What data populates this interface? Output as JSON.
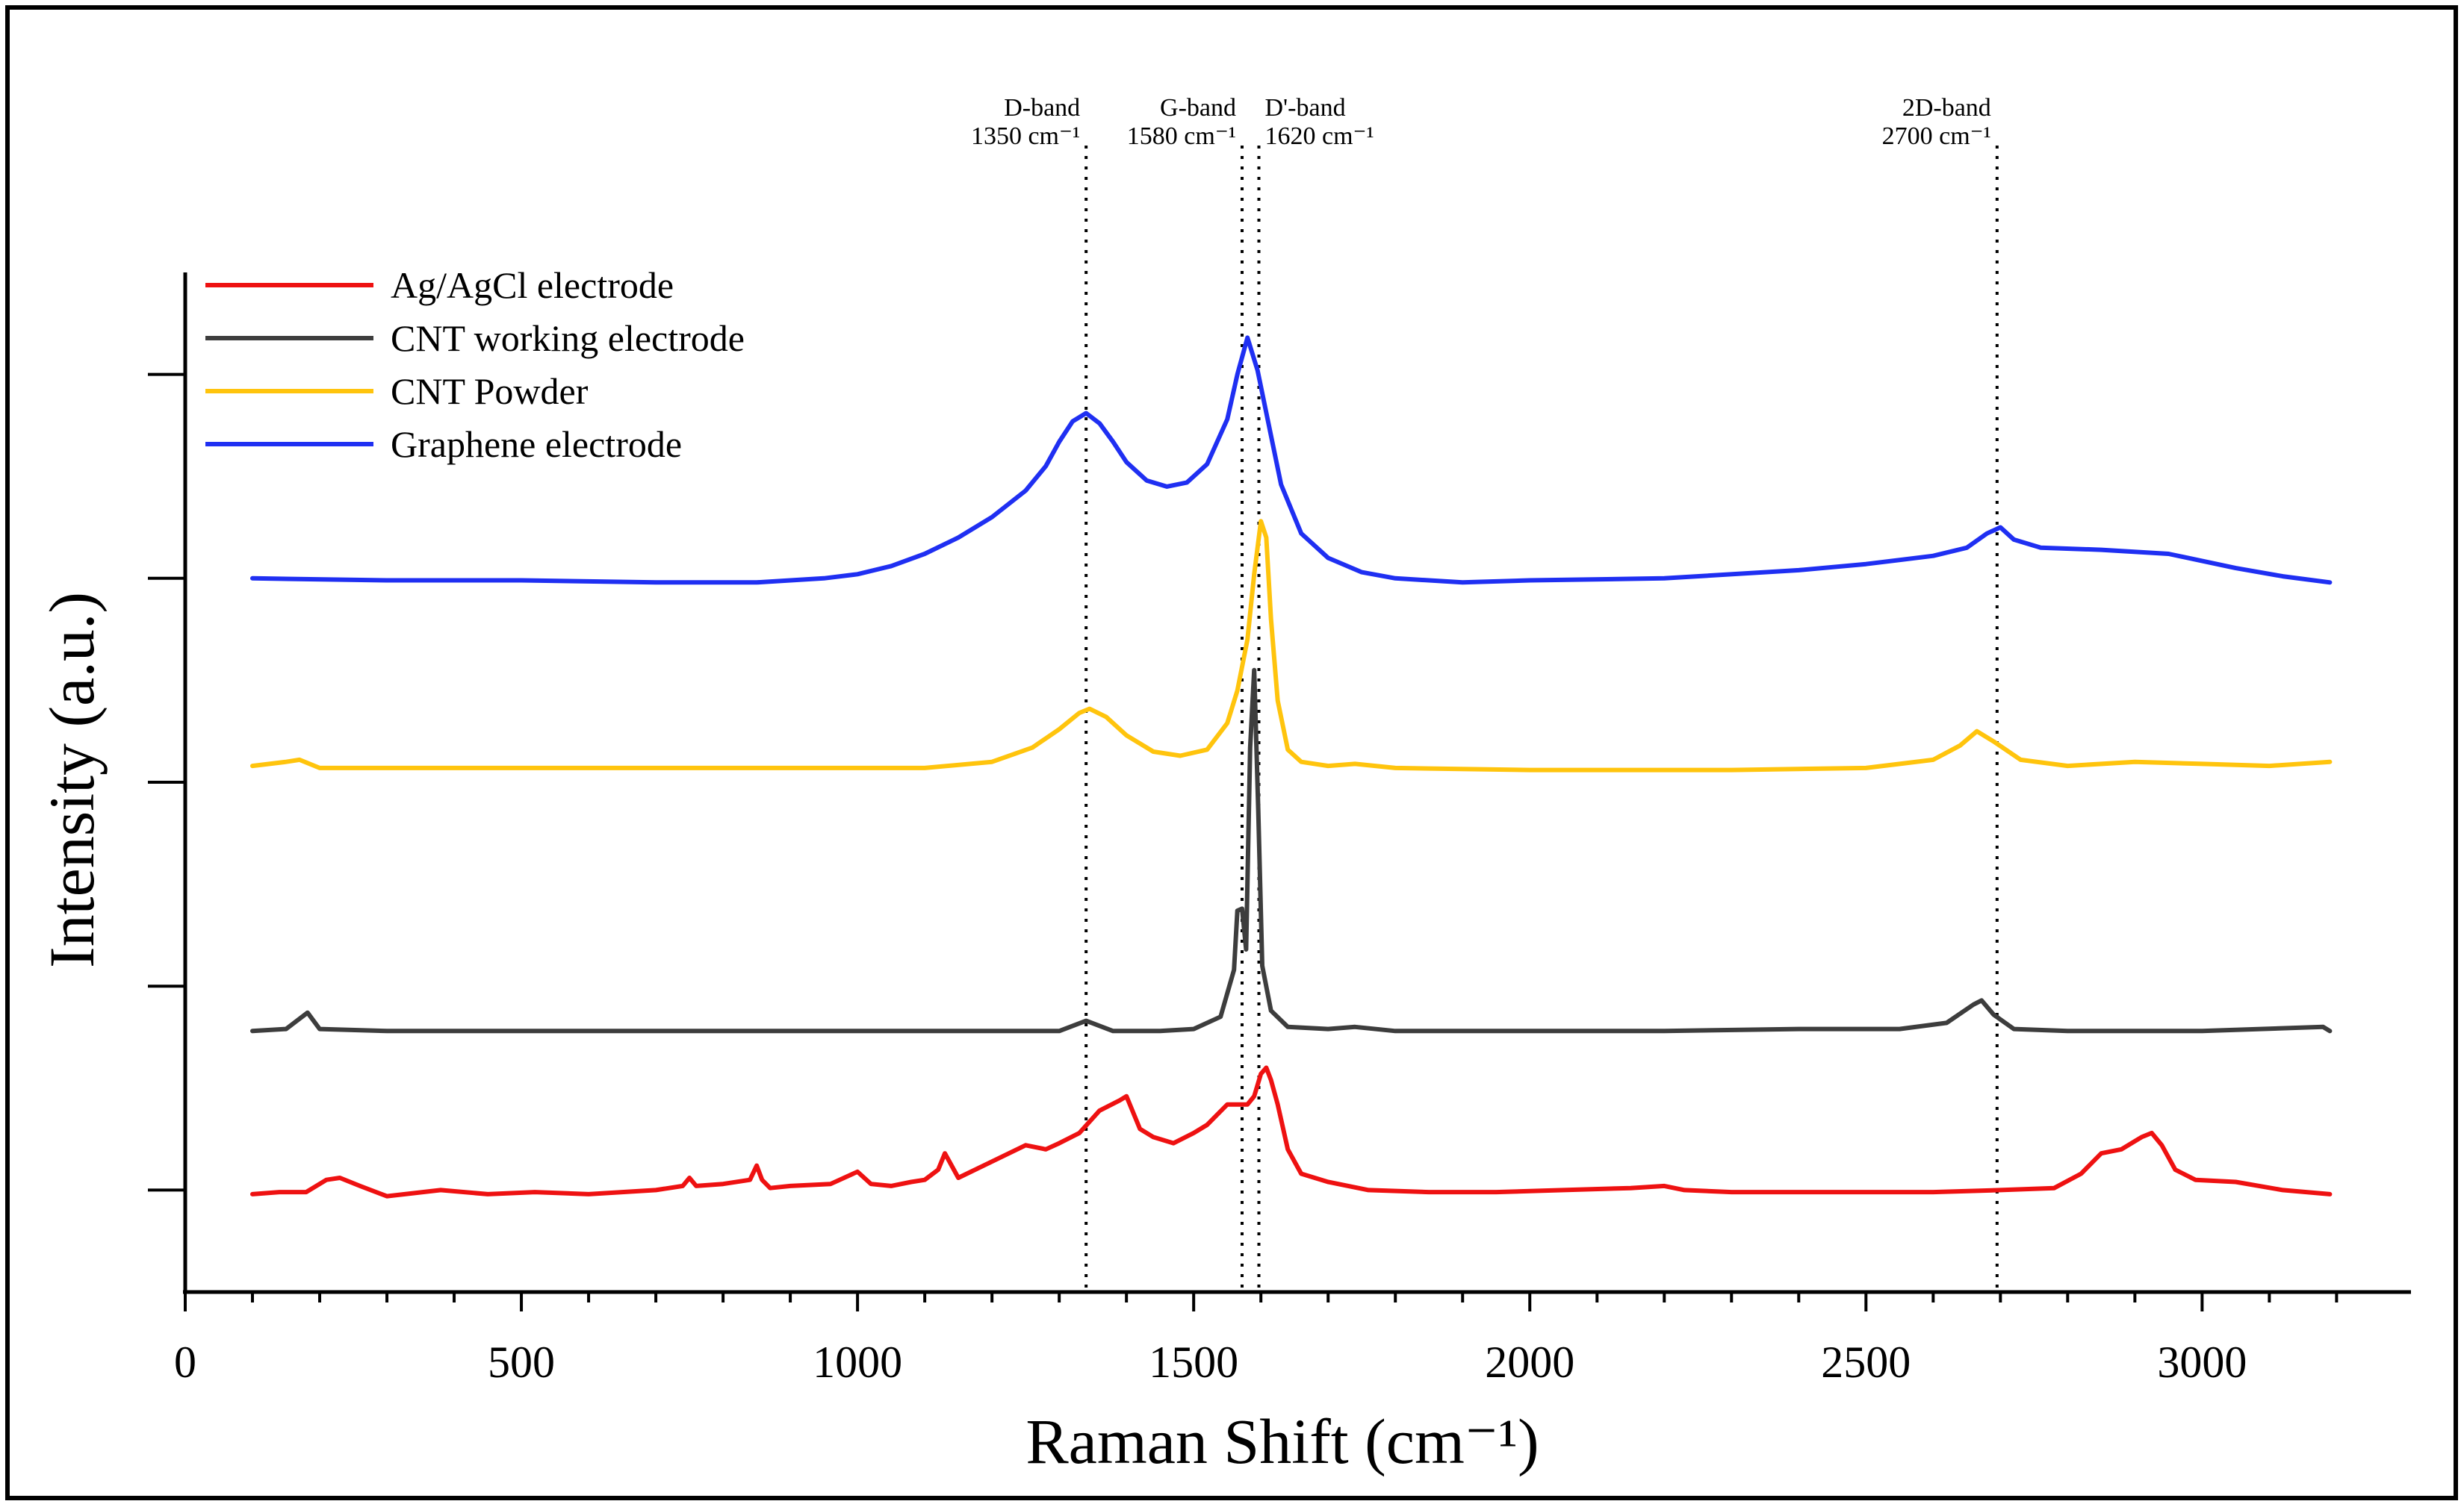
{
  "chart_data": {
    "type": "line",
    "title": "",
    "xlabel": "Raman Shift (cm⁻¹)",
    "ylabel": "Intensity (a.u.)",
    "xlim": [
      0,
      3300
    ],
    "x_ticks": [
      0,
      500,
      1000,
      1500,
      2000,
      2500,
      3000
    ],
    "x_tick_labels": [
      "0",
      "500",
      "1000",
      "1500",
      "2000",
      "2500",
      "3000"
    ],
    "x_minor_step": 100,
    "ylim": [
      0,
      5
    ],
    "y_ticks": [
      0.5,
      1.5,
      2.5,
      3.5,
      4.5
    ],
    "y_tick_labels": [],
    "grid": false,
    "legend_position": "top-left",
    "reference_lines": [
      {
        "x": 1340,
        "name": "D-band",
        "position": "1350 cm⁻¹"
      },
      {
        "x": 1572,
        "name": "G-band",
        "position": "1580 cm⁻¹"
      },
      {
        "x": 1597,
        "name": "D'-band",
        "position": "1620 cm⁻¹"
      },
      {
        "x": 2695,
        "name": "2D-band",
        "position": "2700 cm⁻¹"
      }
    ],
    "series": [
      {
        "name": "Ag/AgCl electrode",
        "color": "#ee1111",
        "x": [
          100,
          140,
          180,
          210,
          230,
          260,
          300,
          380,
          450,
          520,
          600,
          700,
          740,
          750,
          760,
          800,
          840,
          850,
          858,
          870,
          900,
          960,
          1000,
          1020,
          1050,
          1080,
          1100,
          1120,
          1130,
          1150,
          1200,
          1250,
          1280,
          1300,
          1330,
          1360,
          1390,
          1400,
          1420,
          1440,
          1470,
          1500,
          1520,
          1550,
          1580,
          1590,
          1600,
          1608,
          1615,
          1625,
          1640,
          1660,
          1700,
          1760,
          1850,
          1950,
          2050,
          2150,
          2200,
          2230,
          2300,
          2400,
          2500,
          2600,
          2700,
          2780,
          2820,
          2850,
          2880,
          2910,
          2925,
          2940,
          2960,
          2990,
          3050,
          3120,
          3190
        ],
        "y": [
          0.48,
          0.49,
          0.49,
          0.55,
          0.56,
          0.52,
          0.47,
          0.5,
          0.48,
          0.49,
          0.48,
          0.5,
          0.52,
          0.56,
          0.52,
          0.53,
          0.55,
          0.62,
          0.55,
          0.51,
          0.52,
          0.53,
          0.59,
          0.53,
          0.52,
          0.54,
          0.55,
          0.6,
          0.68,
          0.56,
          0.64,
          0.72,
          0.7,
          0.73,
          0.78,
          0.89,
          0.94,
          0.96,
          0.8,
          0.76,
          0.73,
          0.78,
          0.82,
          0.92,
          0.92,
          0.96,
          1.07,
          1.1,
          1.04,
          0.92,
          0.7,
          0.58,
          0.54,
          0.5,
          0.49,
          0.49,
          0.5,
          0.51,
          0.52,
          0.5,
          0.49,
          0.49,
          0.49,
          0.49,
          0.5,
          0.51,
          0.58,
          0.68,
          0.7,
          0.76,
          0.78,
          0.72,
          0.6,
          0.55,
          0.54,
          0.5,
          0.48
        ]
      },
      {
        "name": "CNT working electrode",
        "color": "#3d3d3d",
        "x": [
          100,
          150,
          170,
          182,
          200,
          300,
          500,
          800,
          1000,
          1200,
          1300,
          1340,
          1380,
          1450,
          1500,
          1540,
          1560,
          1565,
          1572,
          1578,
          1584,
          1590,
          1596,
          1602,
          1615,
          1640,
          1700,
          1740,
          1800,
          2000,
          2200,
          2400,
          2550,
          2620,
          2660,
          2672,
          2690,
          2720,
          2800,
          3000,
          3180,
          3190
        ],
        "y": [
          1.28,
          1.29,
          1.34,
          1.37,
          1.29,
          1.28,
          1.28,
          1.28,
          1.28,
          1.28,
          1.28,
          1.33,
          1.28,
          1.28,
          1.29,
          1.35,
          1.58,
          1.87,
          1.88,
          1.68,
          2.67,
          3.05,
          2.37,
          1.6,
          1.38,
          1.3,
          1.29,
          1.3,
          1.28,
          1.28,
          1.28,
          1.29,
          1.29,
          1.32,
          1.41,
          1.43,
          1.36,
          1.29,
          1.28,
          1.28,
          1.3,
          1.28
        ]
      },
      {
        "name": "CNT Powder",
        "color": "#ffc40d",
        "x": [
          100,
          150,
          170,
          200,
          300,
          600,
          900,
          1100,
          1200,
          1260,
          1300,
          1330,
          1345,
          1370,
          1400,
          1440,
          1480,
          1520,
          1550,
          1565,
          1580,
          1590,
          1600,
          1608,
          1615,
          1625,
          1640,
          1660,
          1700,
          1740,
          1800,
          2000,
          2300,
          2500,
          2600,
          2640,
          2665,
          2690,
          2730,
          2800,
          2900,
          3000,
          3100,
          3190
        ],
        "y": [
          2.58,
          2.6,
          2.61,
          2.57,
          2.57,
          2.57,
          2.57,
          2.57,
          2.6,
          2.67,
          2.76,
          2.84,
          2.86,
          2.82,
          2.73,
          2.65,
          2.63,
          2.66,
          2.79,
          2.95,
          3.2,
          3.52,
          3.78,
          3.7,
          3.3,
          2.9,
          2.66,
          2.6,
          2.58,
          2.59,
          2.57,
          2.56,
          2.56,
          2.57,
          2.61,
          2.68,
          2.75,
          2.7,
          2.61,
          2.58,
          2.6,
          2.59,
          2.58,
          2.6
        ]
      },
      {
        "name": "Graphene electrode",
        "color": "#1f2ff2",
        "x": [
          100,
          300,
          500,
          700,
          850,
          950,
          1000,
          1050,
          1100,
          1150,
          1200,
          1250,
          1280,
          1300,
          1320,
          1340,
          1360,
          1380,
          1400,
          1430,
          1460,
          1490,
          1520,
          1550,
          1565,
          1580,
          1595,
          1610,
          1630,
          1660,
          1700,
          1750,
          1800,
          1900,
          2000,
          2200,
          2400,
          2500,
          2600,
          2650,
          2680,
          2700,
          2720,
          2760,
          2850,
          2950,
          3050,
          3120,
          3190
        ],
        "y": [
          3.5,
          3.49,
          3.49,
          3.48,
          3.48,
          3.5,
          3.52,
          3.56,
          3.62,
          3.7,
          3.8,
          3.93,
          4.05,
          4.17,
          4.27,
          4.31,
          4.26,
          4.17,
          4.07,
          3.98,
          3.95,
          3.97,
          4.06,
          4.28,
          4.5,
          4.68,
          4.52,
          4.28,
          3.96,
          3.72,
          3.6,
          3.53,
          3.5,
          3.48,
          3.49,
          3.5,
          3.54,
          3.57,
          3.61,
          3.65,
          3.72,
          3.75,
          3.69,
          3.65,
          3.64,
          3.62,
          3.55,
          3.51,
          3.48
        ]
      }
    ]
  }
}
